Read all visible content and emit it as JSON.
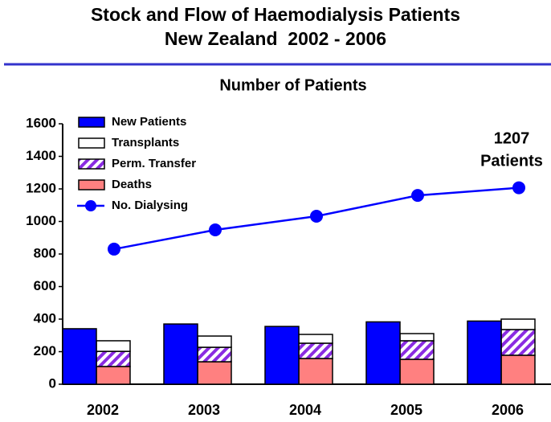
{
  "chart_data": {
    "type": "bar",
    "title": [
      "Stock and Flow of Haemodialysis Patients",
      "New Zealand  2002 - 2006"
    ],
    "subtitle": "Number of Patients",
    "annotation": [
      "1207",
      "Patients"
    ],
    "categories": [
      "2002",
      "2003",
      "2004",
      "2005",
      "2006"
    ],
    "series": [
      {
        "name": "New Patients",
        "type": "bar",
        "stack": "new",
        "color": "#0000ff",
        "values": [
          341,
          370,
          355,
          383,
          388
        ]
      },
      {
        "name": "Transplants",
        "type": "bar",
        "stack": "out",
        "color": "#ffffff",
        "values": [
          65,
          69,
          54,
          44,
          64
        ]
      },
      {
        "name": "Perm. Transfer",
        "type": "bar",
        "stack": "out",
        "color": "#8a2be2",
        "pattern": "hatch",
        "values": [
          93,
          89,
          94,
          114,
          158
        ]
      },
      {
        "name": "Deaths",
        "type": "bar",
        "stack": "out",
        "color": "#ff8080",
        "values": [
          109,
          138,
          158,
          153,
          178
        ]
      },
      {
        "name": "No. Dialysing",
        "type": "line",
        "color": "#0000ff",
        "values": [
          830,
          948,
          1032,
          1160,
          1207
        ]
      }
    ],
    "ylim": [
      0,
      1600
    ],
    "yticks": [
      0,
      200,
      400,
      600,
      800,
      1000,
      1200,
      1400,
      1600
    ],
    "grid": false
  }
}
